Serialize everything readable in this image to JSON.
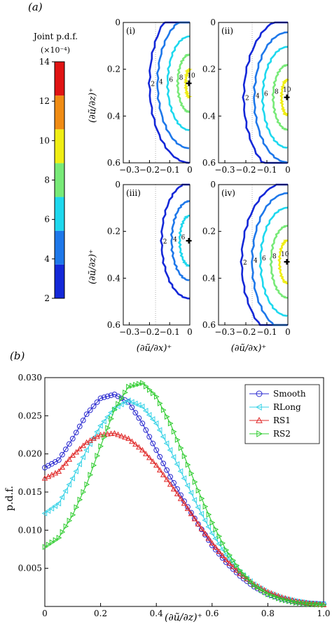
{
  "panel_labels": {
    "a": "(a)",
    "b": "(b)"
  },
  "colorbar": {
    "title": "Joint p.d.f.",
    "scale": "(×10⁻⁴)",
    "ticks": [
      "2",
      "4",
      "6",
      "8",
      "10",
      "12",
      "14"
    ],
    "colors": [
      "#1428d8",
      "#1e78ea",
      "#1ed8ee",
      "#78ea78",
      "#f0ee14",
      "#f08c14",
      "#e01414"
    ]
  },
  "contour_panels": {
    "xlabel": "(∂ũ/∂x)⁺",
    "ylabel": "(∂ũ/∂z)⁺",
    "x_ticks": [
      "−0.3",
      "−0.2",
      "−0.1",
      "0"
    ],
    "y_ticks": [
      "0",
      "0.2",
      "0.4",
      "0.6"
    ],
    "panels": [
      {
        "tag": "(i)",
        "level_labels": [
          "2",
          "4",
          "6",
          "8",
          "10"
        ]
      },
      {
        "tag": "(ii)",
        "level_labels": [
          "2",
          "4",
          "6",
          "8",
          "10"
        ]
      },
      {
        "tag": "(iii)",
        "level_labels": [
          "2",
          "4",
          "6"
        ]
      },
      {
        "tag": "(iv)",
        "level_labels": [
          "2",
          "4",
          "6",
          "8",
          "10"
        ]
      }
    ]
  },
  "chart_data": {
    "type": "line",
    "title": "",
    "xlabel": "(∂ũ/∂z)⁺",
    "ylabel": "p.d.f.",
    "xlim": [
      0,
      1.0
    ],
    "ylim": [
      0,
      0.03
    ],
    "x_ticks": [
      "0",
      "0.2",
      "0.4",
      "0.6",
      "0.8",
      "1.0"
    ],
    "y_ticks": [
      "0.005",
      "0.010",
      "0.015",
      "0.020",
      "0.025",
      "0.030"
    ],
    "legend_position": "top-right",
    "series": [
      {
        "name": "Smooth",
        "color": "#2b2bd0",
        "marker": "circle",
        "x": [
          0,
          0.05,
          0.1,
          0.15,
          0.2,
          0.25,
          0.3,
          0.35,
          0.4,
          0.45,
          0.5,
          0.55,
          0.6,
          0.65,
          0.7,
          0.75,
          0.8,
          0.85,
          0.9,
          0.95,
          1.0
        ],
        "y": [
          0.0182,
          0.0192,
          0.022,
          0.0252,
          0.0273,
          0.0278,
          0.0268,
          0.024,
          0.0205,
          0.017,
          0.0138,
          0.0108,
          0.008,
          0.0058,
          0.004,
          0.0026,
          0.0016,
          0.001,
          0.0006,
          0.0004,
          0.0003
        ]
      },
      {
        "name": "RLong",
        "color": "#36d2e6",
        "marker": "triangle-left",
        "x": [
          0,
          0.05,
          0.1,
          0.15,
          0.2,
          0.25,
          0.3,
          0.35,
          0.4,
          0.45,
          0.5,
          0.55,
          0.6,
          0.65,
          0.7,
          0.75,
          0.8,
          0.85,
          0.9,
          0.95,
          1.0
        ],
        "y": [
          0.0122,
          0.0135,
          0.0168,
          0.0205,
          0.0237,
          0.026,
          0.027,
          0.0262,
          0.024,
          0.0205,
          0.0168,
          0.013,
          0.0096,
          0.0068,
          0.0045,
          0.0029,
          0.0018,
          0.0011,
          0.0007,
          0.0004,
          0.0003
        ]
      },
      {
        "name": "RS1",
        "color": "#e02828",
        "marker": "triangle-up",
        "x": [
          0,
          0.05,
          0.1,
          0.15,
          0.2,
          0.25,
          0.3,
          0.35,
          0.4,
          0.45,
          0.5,
          0.55,
          0.6,
          0.65,
          0.7,
          0.75,
          0.8,
          0.85,
          0.9,
          0.95,
          1.0
        ],
        "y": [
          0.0168,
          0.0177,
          0.0198,
          0.0215,
          0.0225,
          0.0227,
          0.022,
          0.0205,
          0.0185,
          0.016,
          0.0135,
          0.0108,
          0.0083,
          0.0061,
          0.0043,
          0.0029,
          0.0019,
          0.0012,
          0.0007,
          0.0004,
          0.0002
        ]
      },
      {
        "name": "RS2",
        "color": "#2ecc2e",
        "marker": "triangle-right",
        "x": [
          0,
          0.05,
          0.1,
          0.15,
          0.2,
          0.25,
          0.3,
          0.35,
          0.4,
          0.45,
          0.5,
          0.55,
          0.6,
          0.65,
          0.7,
          0.75,
          0.8,
          0.85,
          0.9,
          0.95,
          1.0
        ],
        "y": [
          0.0078,
          0.009,
          0.012,
          0.016,
          0.021,
          0.0258,
          0.0288,
          0.0293,
          0.0275,
          0.024,
          0.0197,
          0.0152,
          0.011,
          0.0074,
          0.0047,
          0.0028,
          0.0016,
          0.0009,
          0.0005,
          0.0003,
          0.0002
        ]
      }
    ]
  }
}
